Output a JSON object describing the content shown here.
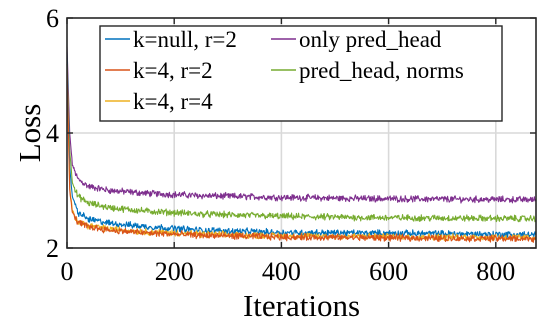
{
  "chart_data": {
    "type": "line",
    "title": "",
    "xlabel": "Iterations",
    "ylabel": "Loss",
    "xlim": [
      0,
      875
    ],
    "ylim": [
      2,
      6
    ],
    "xticks": [
      0,
      200,
      400,
      600,
      800
    ],
    "yticks": [
      2,
      4,
      6
    ],
    "grid": true,
    "legend": {
      "placement": "top-right",
      "columns": 2
    },
    "series": [
      {
        "name": "k=null, r=2",
        "color": "#0072BD",
        "x": [
          0,
          5,
          10,
          20,
          40,
          80,
          150,
          250,
          400,
          550,
          700,
          875
        ],
        "values": [
          5.4,
          3.4,
          2.9,
          2.62,
          2.5,
          2.43,
          2.37,
          2.31,
          2.27,
          2.26,
          2.25,
          2.23
        ]
      },
      {
        "name": "k=4, r=2",
        "color": "#D95319",
        "x": [
          0,
          5,
          10,
          20,
          40,
          80,
          150,
          250,
          400,
          550,
          700,
          875
        ],
        "values": [
          5.2,
          3.0,
          2.62,
          2.45,
          2.37,
          2.31,
          2.26,
          2.22,
          2.19,
          2.18,
          2.17,
          2.16
        ]
      },
      {
        "name": "k=4, r=4",
        "color": "#EDB120",
        "x": [
          0,
          5,
          10,
          20,
          40,
          80,
          150,
          250,
          400,
          550,
          700,
          875
        ],
        "values": [
          5.2,
          3.05,
          2.65,
          2.47,
          2.39,
          2.33,
          2.28,
          2.24,
          2.21,
          2.2,
          2.19,
          2.18
        ]
      },
      {
        "name": "only pred_head",
        "color": "#7E2F8E",
        "x": [
          0,
          5,
          10,
          20,
          40,
          80,
          150,
          250,
          400,
          550,
          700,
          875
        ],
        "values": [
          5.5,
          4.0,
          3.45,
          3.2,
          3.07,
          3.0,
          2.95,
          2.91,
          2.88,
          2.86,
          2.85,
          2.84
        ]
      },
      {
        "name": "pred_head, norms",
        "color": "#77AC30",
        "x": [
          0,
          5,
          10,
          20,
          40,
          80,
          150,
          250,
          400,
          550,
          700,
          875
        ],
        "values": [
          5.3,
          3.7,
          3.15,
          2.9,
          2.78,
          2.7,
          2.64,
          2.59,
          2.55,
          2.53,
          2.52,
          2.51
        ]
      }
    ]
  }
}
